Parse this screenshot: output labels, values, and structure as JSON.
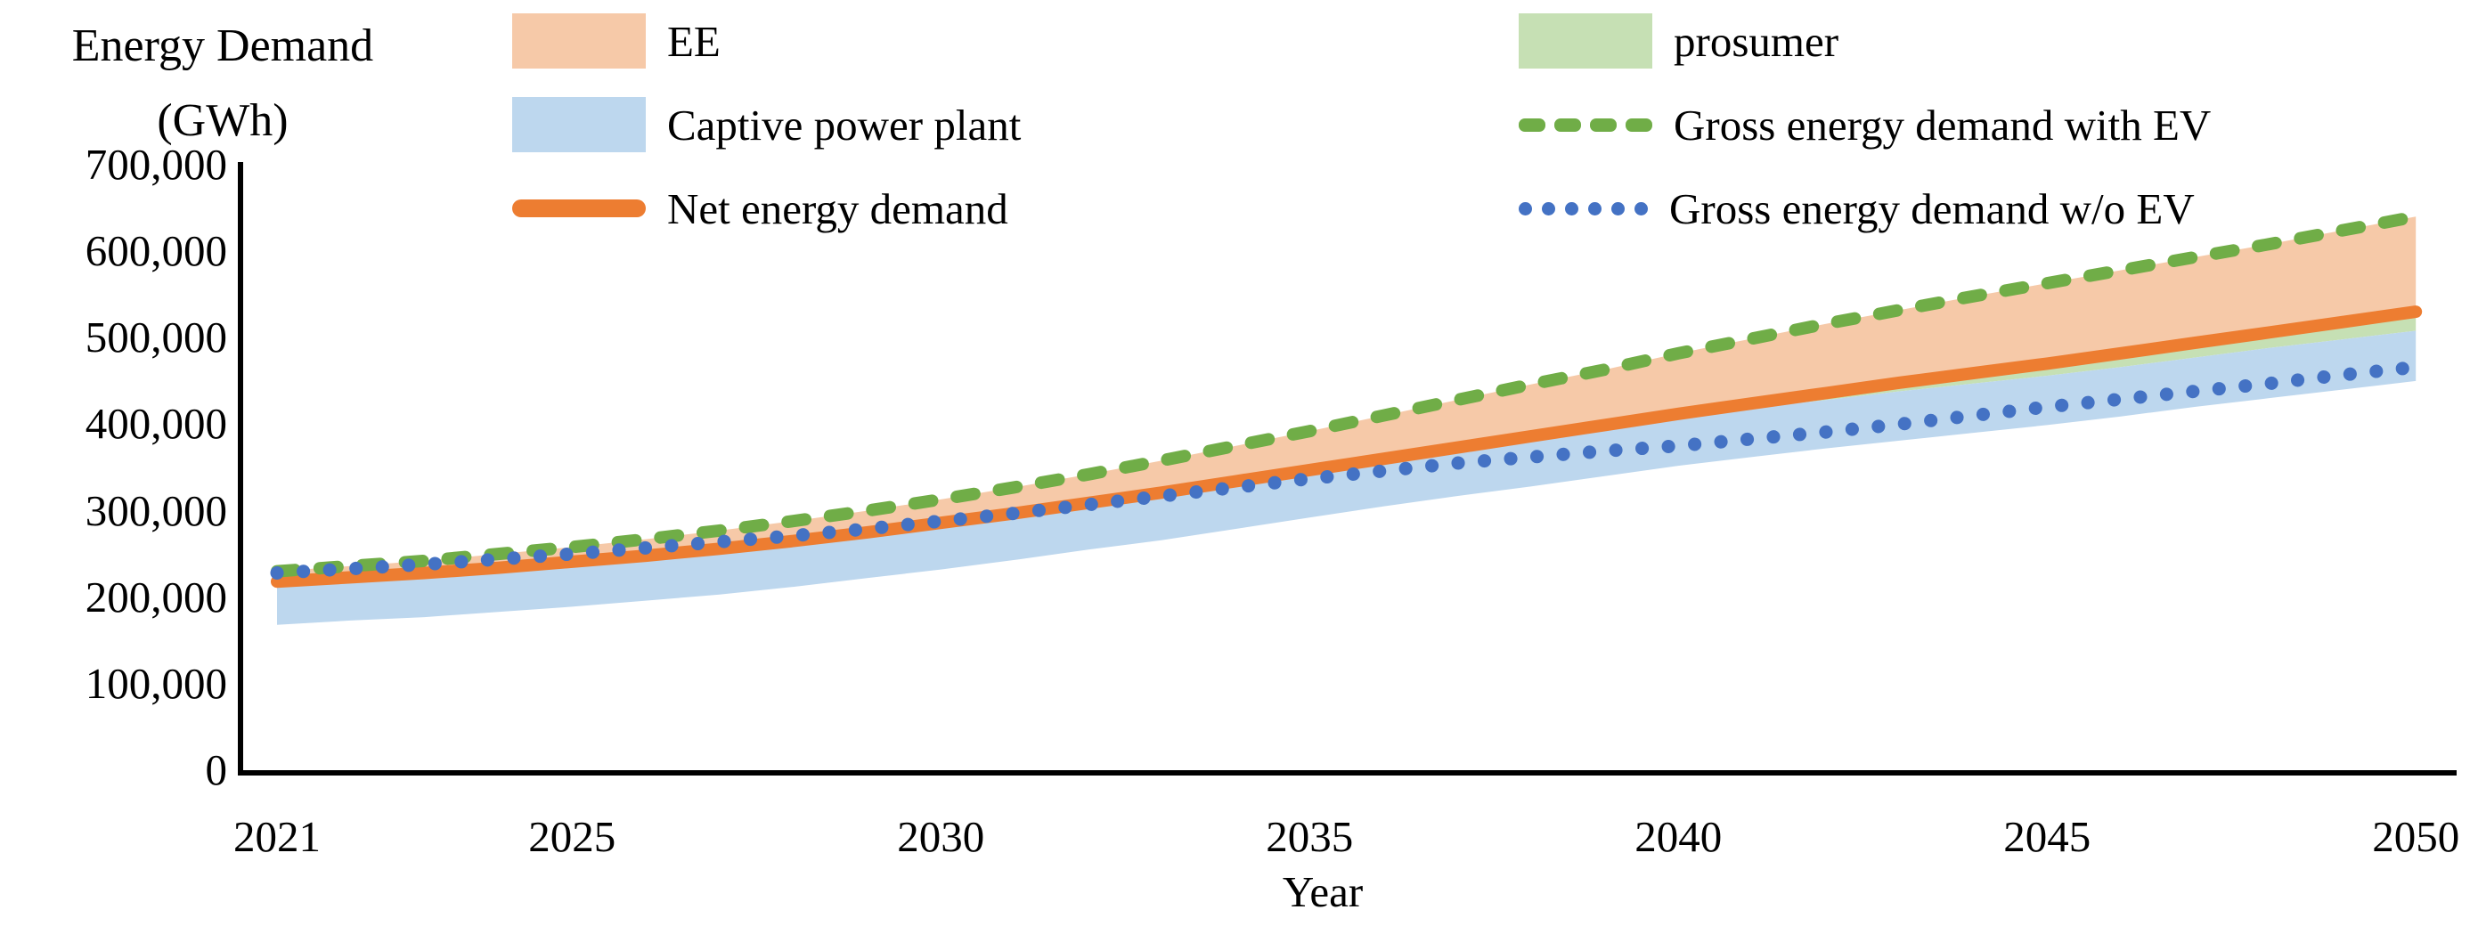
{
  "title": {
    "line1": "Energy Demand",
    "line2": "(GWh)"
  },
  "x_axis": {
    "label": "Year",
    "ticks": [
      {
        "label": "2021",
        "value": 2021
      },
      {
        "label": "2025",
        "value": 2025
      },
      {
        "label": "2030",
        "value": 2030
      },
      {
        "label": "2035",
        "value": 2035
      },
      {
        "label": "2040",
        "value": 2040
      },
      {
        "label": "2045",
        "value": 2045
      },
      {
        "label": "2050",
        "value": 2050
      }
    ]
  },
  "y_axis": {
    "ticks": [
      {
        "label": "700,000",
        "value": 700000
      },
      {
        "label": "600,000",
        "value": 600000
      },
      {
        "label": "500,000",
        "value": 500000
      },
      {
        "label": "400,000",
        "value": 400000
      },
      {
        "label": "300,000",
        "value": 300000
      },
      {
        "label": "200,000",
        "value": 200000
      },
      {
        "label": "100,000",
        "value": 100000
      },
      {
        "label": "0",
        "value": 0
      }
    ]
  },
  "legend": {
    "columns": [
      {
        "items": [
          {
            "label": "EE",
            "marker": "area",
            "color": "#F6C9A8"
          },
          {
            "label": "Captive power plant",
            "marker": "area",
            "color": "#BDD7EE"
          },
          {
            "label": "Net energy demand",
            "marker": "solid-line",
            "color": "#ED7D31"
          }
        ]
      },
      {
        "items": [
          {
            "label": "prosumer",
            "marker": "area",
            "color": "#C6E0B4"
          },
          {
            "label": "Gross energy demand with EV",
            "marker": "dashed-line",
            "color": "#70AD47"
          },
          {
            "label": "Gross energy demand w/o EV",
            "marker": "dotted-line",
            "color": "#4472C4"
          }
        ]
      }
    ]
  },
  "colors": {
    "axis": "#000000",
    "ee_area": "#F6C9A8",
    "captive_area": "#BDD7EE",
    "prosumer_area": "#C6E0B4",
    "net_line": "#ED7D31",
    "gross_with_ev_line": "#70AD47",
    "gross_wo_ev_line": "#4472C4"
  },
  "chart_data": {
    "type": "area",
    "title": "Energy Demand (GWh)",
    "xlabel": "Year",
    "ylabel": "Energy Demand (GWh)",
    "xlim": [
      2021,
      2050
    ],
    "ylim": [
      0,
      700000
    ],
    "grid": false,
    "legend_position": "top",
    "x": [
      2021,
      2022,
      2023,
      2024,
      2025,
      2026,
      2027,
      2028,
      2029,
      2030,
      2031,
      2032,
      2033,
      2034,
      2035,
      2036,
      2037,
      2038,
      2039,
      2040,
      2041,
      2042,
      2043,
      2044,
      2045,
      2046,
      2047,
      2048,
      2049,
      2050
    ],
    "series": [
      {
        "name": "Net energy demand",
        "style": "solid-line",
        "color": "#ED7D31",
        "values": [
          218000,
          223000,
          228000,
          234000,
          241000,
          248000,
          256000,
          265000,
          275000,
          286000,
          297000,
          309000,
          321000,
          334000,
          347000,
          360000,
          373000,
          386000,
          399000,
          412000,
          424000,
          436000,
          448000,
          459000,
          470000,
          482000,
          494000,
          506000,
          518000,
          530000
        ]
      },
      {
        "name": "Gross energy demand with EV",
        "style": "dashed-line",
        "color": "#70AD47",
        "values": [
          230000,
          236000,
          242000,
          250000,
          258000,
          267000,
          277000,
          288000,
          300000,
          313000,
          327000,
          342000,
          358000,
          375000,
          392000,
          410000,
          428000,
          446000,
          463000,
          482000,
          499000,
          516000,
          532000,
          548000,
          563000,
          578000,
          593000,
          608000,
          624000,
          640000
        ]
      },
      {
        "name": "Gross energy demand w/o EV",
        "style": "dotted-line",
        "color": "#4472C4",
        "values": [
          228000,
          233000,
          238000,
          244000,
          250000,
          257000,
          264000,
          271000,
          279000,
          288000,
          297000,
          307000,
          317000,
          327000,
          337000,
          346000,
          355000,
          362000,
          369000,
          375000,
          383000,
          391000,
          400000,
          410000,
          420000,
          429000,
          438000,
          447000,
          457000,
          466000
        ]
      },
      {
        "name": "EE",
        "style": "area-band",
        "color": "#F6C9A8",
        "upper_boundary": "Gross energy demand with EV",
        "lower_boundary": "Net energy demand"
      },
      {
        "name": "prosumer",
        "style": "area-band",
        "color": "#C6E0B4",
        "below": "Net energy demand",
        "band_thickness": [
          0,
          0,
          0,
          0,
          0,
          0,
          0,
          0,
          0,
          0,
          0,
          0,
          0,
          0,
          0,
          0,
          1000,
          2000,
          3000,
          4000,
          6000,
          8000,
          10000,
          12000,
          14000,
          16000,
          17000,
          18000,
          20000,
          22000
        ]
      },
      {
        "name": "Captive power plant",
        "style": "area-band",
        "color": "#BDD7EE",
        "below": "prosumer",
        "band_thickness": [
          50000,
          50000,
          51000,
          51000,
          52000,
          52000,
          53000,
          53000,
          53000,
          54000,
          54000,
          54000,
          55000,
          55000,
          55000,
          55000,
          55000,
          56000,
          56000,
          56000,
          56000,
          56000,
          57000,
          57000,
          57000,
          57000,
          57000,
          58000,
          58000,
          58000
        ]
      }
    ]
  }
}
